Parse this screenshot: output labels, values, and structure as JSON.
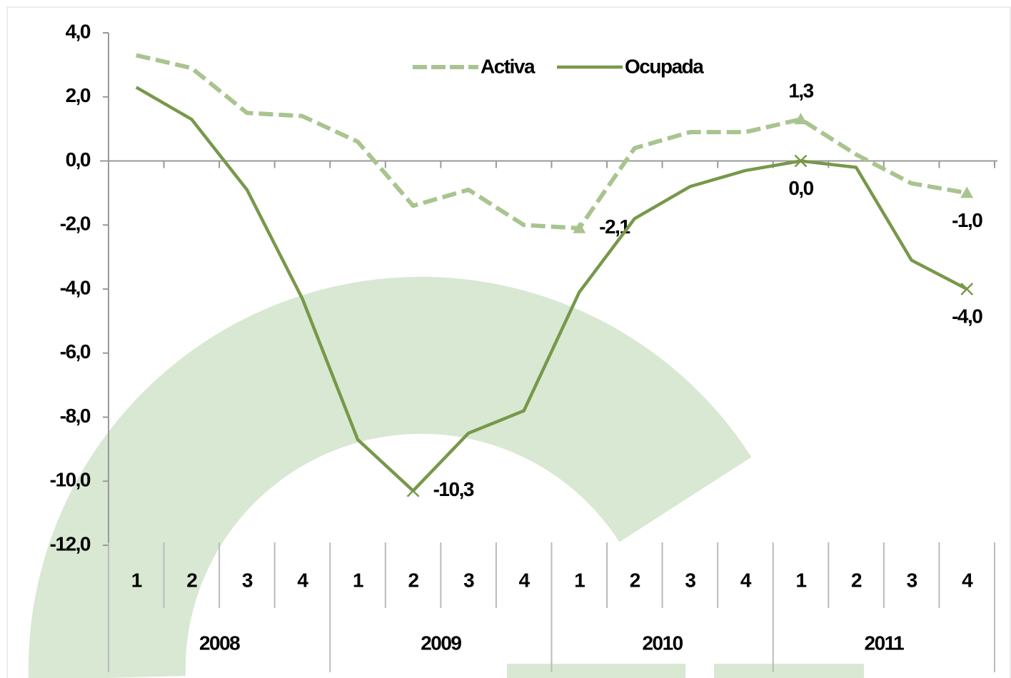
{
  "chart_data": {
    "type": "line",
    "categories": [
      "1",
      "2",
      "3",
      "4",
      "1",
      "2",
      "3",
      "4",
      "1",
      "2",
      "3",
      "4",
      "1",
      "2",
      "3",
      "4"
    ],
    "category_groups": [
      "2008",
      "2009",
      "2010",
      "2011"
    ],
    "series": [
      {
        "name": "Activa",
        "color": "#a9c48f",
        "dashed": true,
        "marker": "triangle",
        "values": [
          3.3,
          2.9,
          1.5,
          1.4,
          0.6,
          -1.4,
          -0.9,
          -2.0,
          -2.1,
          0.4,
          0.9,
          0.9,
          1.3,
          0.2,
          -0.7,
          -1.0
        ],
        "value_labels": [
          null,
          null,
          null,
          null,
          null,
          null,
          null,
          null,
          "-2,1",
          null,
          null,
          null,
          "1,3",
          null,
          null,
          "-1,0"
        ]
      },
      {
        "name": "Ocupada",
        "color": "#77984a",
        "dashed": false,
        "marker": "x",
        "values": [
          2.3,
          1.3,
          -0.9,
          -4.3,
          -8.7,
          -10.3,
          -8.5,
          -7.8,
          -4.1,
          -1.8,
          -0.8,
          -0.3,
          0.0,
          -0.2,
          -3.1,
          -4.0
        ],
        "value_labels": [
          null,
          null,
          null,
          null,
          null,
          "-10,3",
          null,
          null,
          null,
          null,
          null,
          null,
          "0,0",
          null,
          null,
          "-4,0"
        ]
      }
    ],
    "ylim": [
      -12,
      4
    ],
    "yticks": [
      {
        "value": -12,
        "label": "-12,0"
      },
      {
        "value": -10,
        "label": "-10,0"
      },
      {
        "value": -8,
        "label": "-8,0"
      },
      {
        "value": -6,
        "label": "-6,0"
      },
      {
        "value": -4,
        "label": "-4,0"
      },
      {
        "value": -2,
        "label": "-2,0"
      },
      {
        "value": 0,
        "label": "0,0"
      },
      {
        "value": 2,
        "label": "2,0"
      },
      {
        "value": 4,
        "label": "4,0"
      }
    ],
    "legend": "top",
    "grid": false
  }
}
